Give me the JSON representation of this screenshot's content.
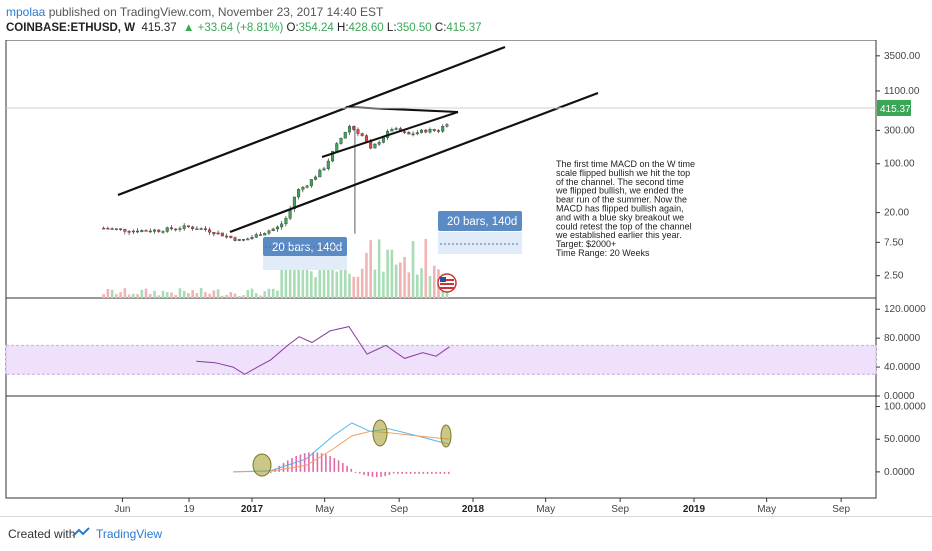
{
  "header": {
    "author": "mpolaa",
    "published": " published on TradingView.com, November 23, 2017 14:40 EST",
    "symbol": "COINBASE:ETHUSD, W",
    "last": "415.37",
    "change_arrow": "▲",
    "change": "+33.64 (+8.81%)",
    "o_label": "O:",
    "o": "354.24",
    "h_label": "H:",
    "h": "428.60",
    "l_label": "L:",
    "l": "350.50",
    "c_label": "C:",
    "c": "415.37"
  },
  "chart_data": [
    {
      "type": "candlestick",
      "title": "COINBASE:ETHUSD, W",
      "yscale": "log",
      "ylim": [
        1.2,
        5000
      ],
      "y_ticks": [
        "3500.00",
        "1100.00",
        "300.00",
        "100.00",
        "20.00",
        "7.50",
        "2.50"
      ],
      "price_tag": "415.37",
      "x_ticks": [
        "Jun",
        "19",
        "2017",
        "May",
        "Sep",
        "2018",
        "May",
        "Sep",
        "2019",
        "May",
        "Sep"
      ],
      "bold_x_ticks": [
        "2017",
        "2018",
        "2019"
      ],
      "price_points": [
        [
          "2016-05-01",
          12
        ],
        [
          "2016-06-15",
          11
        ],
        [
          "2016-08-01",
          11.2
        ],
        [
          "2016-09-15",
          12.5
        ],
        [
          "2016-10-15",
          11.5
        ],
        [
          "2016-11-15",
          9.5
        ],
        [
          "2016-12-15",
          7.8
        ],
        [
          "2017-01-15",
          10
        ],
        [
          "2017-02-15",
          12.5
        ],
        [
          "2017-03-01",
          18
        ],
        [
          "2017-03-15",
          40
        ],
        [
          "2017-04-01",
          50
        ],
        [
          "2017-05-01",
          90
        ],
        [
          "2017-05-20",
          180
        ],
        [
          "2017-06-10",
          350
        ],
        [
          "2017-07-01",
          260
        ],
        [
          "2017-07-16",
          160
        ],
        [
          "2017-08-01",
          220
        ],
        [
          "2017-08-20",
          320
        ],
        [
          "2017-09-15",
          260
        ],
        [
          "2017-10-15",
          300
        ],
        [
          "2017-11-05",
          300
        ],
        [
          "2017-11-23",
          415.37
        ]
      ],
      "volume_note": "volume histogram at bottom of price pane",
      "labels": [
        "20 bars, 140d",
        "20 bars, 140d"
      ],
      "annotation": [
        "The first time MACD on the W time",
        "scale flipped bullish we hit the top",
        "of the channel. The second time",
        "we flipped bullish, we ended the",
        "bear run of the summer. Now the",
        "MACD has flipped bullish again,",
        "and with a blue sky breakout we",
        "could retest the top of the channel",
        "we established earlier this year.",
        "Target: $2000+",
        "Time Range: 20 Weeks"
      ]
    },
    {
      "type": "line",
      "name": "RSI",
      "ylim": [
        0,
        130
      ],
      "y_ticks": [
        "120.0000",
        "80.0000",
        "40.0000",
        "0.0000"
      ],
      "band": [
        30,
        70
      ],
      "points": [
        [
          "2016-10-01",
          48
        ],
        [
          "2016-11-01",
          46
        ],
        [
          "2016-12-01",
          40
        ],
        [
          "2016-12-20",
          30
        ],
        [
          "2017-01-10",
          40
        ],
        [
          "2017-02-01",
          50
        ],
        [
          "2017-03-01",
          70
        ],
        [
          "2017-03-20",
          82
        ],
        [
          "2017-04-10",
          74
        ],
        [
          "2017-05-10",
          90
        ],
        [
          "2017-06-10",
          96
        ],
        [
          "2017-07-10",
          58
        ],
        [
          "2017-08-10",
          70
        ],
        [
          "2017-09-10",
          52
        ],
        [
          "2017-10-10",
          60
        ],
        [
          "2017-11-01",
          55
        ],
        [
          "2017-11-23",
          68
        ]
      ]
    },
    {
      "type": "line",
      "name": "MACD",
      "ylim": [
        -40,
        110
      ],
      "y_ticks": [
        "100.0000",
        "50.0000",
        "0.0000"
      ],
      "macd": [
        [
          "2016-12-01",
          0
        ],
        [
          "2017-02-01",
          2
        ],
        [
          "2017-04-01",
          20
        ],
        [
          "2017-05-15",
          55
        ],
        [
          "2017-06-15",
          75
        ],
        [
          "2017-07-15",
          62
        ],
        [
          "2017-08-15",
          66
        ],
        [
          "2017-10-01",
          55
        ],
        [
          "2017-11-23",
          42
        ]
      ],
      "signal": [
        [
          "2016-12-01",
          0
        ],
        [
          "2017-02-01",
          1
        ],
        [
          "2017-04-01",
          10
        ],
        [
          "2017-05-15",
          35
        ],
        [
          "2017-06-15",
          55
        ],
        [
          "2017-07-15",
          62
        ],
        [
          "2017-08-15",
          60
        ],
        [
          "2017-10-01",
          55
        ],
        [
          "2017-11-23",
          50
        ]
      ]
    }
  ],
  "footer": {
    "created": "Created with",
    "brand": "TradingView"
  },
  "colors": {
    "up": "#3aa757",
    "down": "#e0474c",
    "rsi": "#8a3d9e",
    "rsi_band": "#efe0fb",
    "macd": "#4fb7e8",
    "signal": "#f0a060",
    "hist": "#e06aa8",
    "label_bg": "#5b8bc5"
  }
}
